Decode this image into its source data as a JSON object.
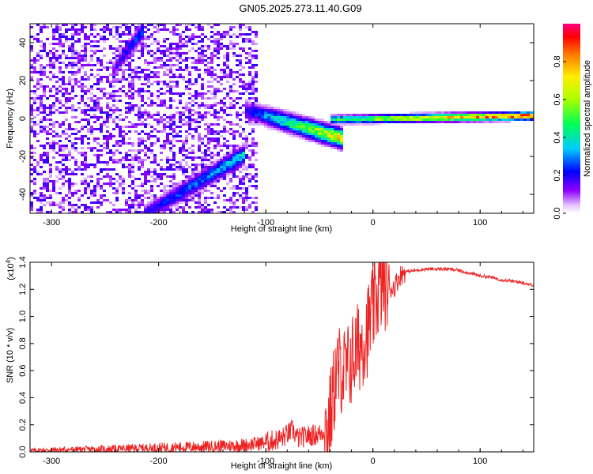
{
  "title": "GN05.2025.273.11.40.G09",
  "colorbar": {
    "label": "Normalized spectral amplitude",
    "ticks": [
      "0.0",
      "0.2",
      "0.4",
      "0.6",
      "0.8"
    ],
    "tick_values": [
      0.0,
      0.2,
      0.4,
      0.6,
      0.8
    ],
    "range": [
      0,
      1
    ]
  },
  "chart_data": [
    {
      "type": "heatmap",
      "name": "spectrogram",
      "xlabel": "Height of straight line (km)",
      "ylabel": "Frequency (Hz)",
      "xlim": [
        -320,
        150
      ],
      "ylim": [
        -50,
        50
      ],
      "xticks": [
        -300,
        -200,
        -100,
        0,
        100
      ],
      "xtick_labels": [
        "-300",
        "-200",
        "-100",
        "0",
        "100"
      ],
      "yticks": [
        -40,
        -20,
        0,
        20,
        40
      ],
      "ytick_labels": [
        "-40",
        "-20",
        "0",
        "20",
        "40"
      ],
      "grid": false,
      "features": [
        {
          "feature": "diffuse_noise",
          "x_range": [
            -320,
            -110
          ],
          "f_range": [
            -50,
            50
          ],
          "amplitude": 0.15
        },
        {
          "feature": "upper_oblique_band",
          "x": [
            -245,
            -215
          ],
          "f": [
            25,
            48
          ],
          "amplitude": [
            0.15,
            0.3
          ]
        },
        {
          "feature": "lower_oblique_band",
          "x": [
            -215,
            -120
          ],
          "f": [
            -50,
            -18
          ],
          "amplitude": [
            0.2,
            0.4
          ]
        },
        {
          "feature": "converging_signal",
          "x": [
            -120,
            -30
          ],
          "f": [
            5,
            -10
          ],
          "amplitude": [
            0.2,
            0.8
          ]
        },
        {
          "feature": "carrier_line",
          "x": [
            -40,
            150
          ],
          "f": [
            0,
            2
          ],
          "amplitude": [
            0.5,
            1.0
          ]
        }
      ]
    },
    {
      "type": "line",
      "name": "snr",
      "xlabel": "Height of straight line (km)",
      "ylabel": "SNR (10 * v/v)",
      "y_multiplier": "(x10",
      "y_multiplier_exp": "4",
      "y_multiplier_close": ")",
      "xlim": [
        -320,
        150
      ],
      "ylim": [
        0,
        1.4
      ],
      "xticks": [
        -300,
        -200,
        -100,
        0,
        100
      ],
      "xtick_labels": [
        "-300",
        "-200",
        "-100",
        "0",
        "100"
      ],
      "yticks": [
        0.0,
        0.2,
        0.4,
        0.6,
        0.8,
        1.0,
        1.2,
        1.4
      ],
      "ytick_labels": [
        "0.0",
        "0.2",
        "0.4",
        "0.6",
        "0.8",
        "1.0",
        "1.2",
        "1.4"
      ],
      "color": "#ee2222",
      "grid": false,
      "series": [
        {
          "x": [
            -320,
            -300,
            -250,
            -200,
            -150,
            -120,
            -100,
            -85,
            -75,
            -70,
            -60,
            -50,
            -42,
            -38,
            -35,
            -30,
            -25,
            -20,
            -15,
            -10,
            -5,
            0,
            5,
            10,
            15,
            20,
            25,
            30,
            40,
            50,
            60,
            70,
            80,
            90,
            100,
            110,
            120,
            130,
            140,
            150
          ],
          "values": [
            0.01,
            0.015,
            0.02,
            0.03,
            0.04,
            0.05,
            0.07,
            0.1,
            0.16,
            0.1,
            0.12,
            0.13,
            0.18,
            0.35,
            0.55,
            0.62,
            0.58,
            0.68,
            0.75,
            0.82,
            0.9,
            1.05,
            1.18,
            1.26,
            1.2,
            1.22,
            1.3,
            1.33,
            1.34,
            1.35,
            1.35,
            1.35,
            1.34,
            1.32,
            1.3,
            1.29,
            1.27,
            1.26,
            1.25,
            1.23
          ]
        }
      ]
    }
  ]
}
